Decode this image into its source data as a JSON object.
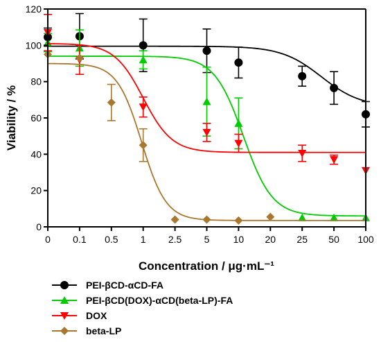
{
  "chart_data": {
    "type": "line",
    "xlabel": "Concentration / μg·mL⁻¹",
    "ylabel": "Viability / %",
    "x_ticks": [
      "0",
      "0.1",
      "0.5",
      "1",
      "2.5",
      "5",
      "10",
      "20",
      "25",
      "50",
      "100"
    ],
    "x_tick_positions": [
      0,
      1,
      2,
      3,
      4,
      5,
      6,
      7,
      8,
      9,
      10
    ],
    "y_ticks": [
      0,
      20,
      40,
      60,
      80,
      100,
      120
    ],
    "ylim": [
      0,
      120
    ],
    "xlim": [
      0,
      10
    ],
    "grid": false,
    "legend_position": "bottom",
    "series": [
      {
        "name": "PEI-βCD-αCD-FA",
        "color": "#000000",
        "marker": "circle",
        "x": [
          0,
          1,
          3,
          5,
          6,
          8,
          9,
          10
        ],
        "y": [
          104.5,
          105,
          100,
          97,
          90.5,
          83,
          76.5,
          62
        ],
        "err": [
          5,
          12.5,
          14.5,
          12,
          8.5,
          5.5,
          9,
          7
        ],
        "fit": {
          "bottom": 66,
          "top": 99.5,
          "x50": 8.6,
          "hill": 1.6
        }
      },
      {
        "name": "PEI-βCD(DOX)-αCD(beta-LP)-FA",
        "color": "#00cc00",
        "marker": "triangle-up",
        "x": [
          0,
          1,
          3,
          5,
          6,
          8,
          9,
          10
        ],
        "y": [
          101.5,
          98.5,
          92,
          69,
          57,
          5,
          5,
          5
        ],
        "err": [
          5,
          10,
          5,
          19,
          14,
          0,
          0,
          0
        ],
        "fit": {
          "bottom": 6,
          "top": 94,
          "x50": 6.15,
          "hill": 2.2
        }
      },
      {
        "name": "DOX",
        "color": "#ff0000",
        "marker": "triangle-down",
        "x": [
          0,
          1,
          3,
          5,
          6,
          8,
          9,
          10
        ],
        "y": [
          107,
          92,
          66,
          52,
          46,
          40.5,
          37,
          31
        ],
        "err": [
          10,
          8,
          5.5,
          5,
          5,
          4.5,
          2.5,
          0
        ],
        "fit": {
          "bottom": 41,
          "top": 101,
          "x50": 3.0,
          "hill": 2.2
        }
      },
      {
        "name": "beta-LP",
        "color": "#a9772e",
        "marker": "diamond",
        "x": [
          0,
          1,
          2,
          3,
          4,
          5,
          6,
          7
        ],
        "y": [
          95,
          93,
          68.5,
          45,
          4,
          4,
          3.5,
          5.5
        ],
        "err": [
          0,
          0,
          10,
          9,
          0,
          0,
          0,
          0
        ],
        "fit": {
          "bottom": 3.5,
          "top": 90,
          "x50": 2.95,
          "hill": 2.6
        }
      }
    ]
  },
  "legend": {
    "items": [
      "PEI-βCD-αCD-FA",
      "PEI-βCD(DOX)-αCD(beta-LP)-FA",
      "DOX",
      "beta-LP"
    ]
  }
}
